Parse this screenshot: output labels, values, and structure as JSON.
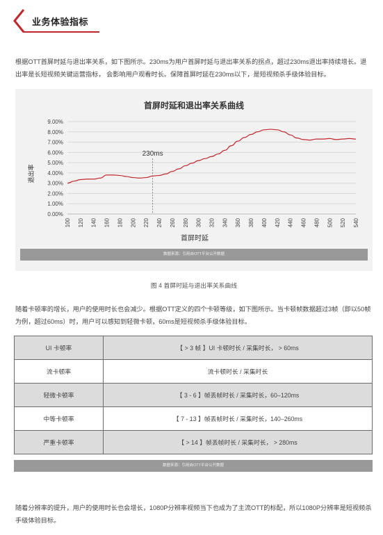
{
  "header": {
    "title": "业务体验指标",
    "accent_color": "#c0272d"
  },
  "intro_paragraph": "根据OTT首屏时延与退出率关系，如下图所示。230ms为用户首屏时延与退出率关系的拐点，超过230ms退出率持续增长。退出率是长短视频关键运营指标， 会影响用户观看时长。保障首屏时延在230ms以下，是短视频杀手级体验目标。",
  "chart_data": {
    "type": "line",
    "title": "首屏时延和退出率关系曲线",
    "xlabel": "首屏时延",
    "ylabel": "退出率",
    "x": [
      100,
      110,
      120,
      130,
      140,
      150,
      160,
      170,
      180,
      190,
      200,
      210,
      220,
      230,
      240,
      250,
      260,
      270,
      280,
      290,
      300,
      310,
      320,
      330,
      340,
      350,
      360,
      370,
      380,
      390,
      400,
      410,
      420,
      430,
      440,
      450,
      460,
      470,
      480,
      490,
      500,
      510,
      520,
      530,
      540
    ],
    "series": [
      {
        "values": [
          3.0,
          3.2,
          3.35,
          3.4,
          3.4,
          3.5,
          3.8,
          3.8,
          3.75,
          3.65,
          3.55,
          3.5,
          3.55,
          3.7,
          3.75,
          3.9,
          4.15,
          4.4,
          4.7,
          4.95,
          5.2,
          5.4,
          5.6,
          5.85,
          6.2,
          6.65,
          7.1,
          7.45,
          7.75,
          8.0,
          8.2,
          8.25,
          8.2,
          8.0,
          7.7,
          7.4,
          7.25,
          7.2,
          7.3,
          7.3,
          7.35,
          7.25,
          7.3,
          7.35,
          7.3
        ]
      }
    ],
    "ylim": [
      0,
      9
    ],
    "yticks": [
      "0.00%",
      "1.00%",
      "2.00%",
      "3.00%",
      "4.00%",
      "5.00%",
      "6.00%",
      "7.00%",
      "8.00%",
      "9.00%"
    ],
    "xticks": [
      "100",
      "120",
      "140",
      "160",
      "180",
      "200",
      "220",
      "240",
      "260",
      "280",
      "300",
      "320",
      "340",
      "360",
      "380",
      "400",
      "420",
      "440",
      "460",
      "480",
      "500",
      "520",
      "540"
    ],
    "annotation": {
      "x": 230,
      "label": "230ms"
    },
    "line_color": "#c0272d",
    "grid": true
  },
  "chart_source": "数据来源：引用自OTT平台公开数据",
  "figure_caption": "图 4 首屏时延与退出率关系曲线",
  "stall_paragraph": "随着卡顿率的增长，用户的使用时长也会减少。根据OTT定义的四个卡顿等级，如下图所示。当卡顿帧数据超过3帧（即以50帧为例，超过60ms）时，用户可以感知到轻微卡顿，60ms是短视频杀手级体验目标。",
  "stall_table": [
    {
      "label": "UI 卡顿率",
      "value": "【 > 3 帧 】UI 卡顿时长 / 采集时长， > 60ms"
    },
    {
      "label": "流卡顿率",
      "value": "流卡顿时长 / 采集时长"
    },
    {
      "label": "轻微卡顿率",
      "value": "【 3 - 6 】帧丢帧时长 / 采集时长，60–120ms"
    },
    {
      "label": "中等卡顿率",
      "value": "【 7 - 13 】帧丢帧时长 / 采集时长，140–260ms"
    },
    {
      "label": "严重卡顿率",
      "value": "【 > 14 】帧丢帧时长 / 采集时长， > 280ms"
    }
  ],
  "table_source": "数据来源：引用自OTT平台公开数据",
  "resolution_paragraph": "随着分辨率的提升，用户的使用时长也会增长，1080P分辨率视频当下也成为了主流OTT的标配，所以1080P分辨率是短视频杀手级体验目标。"
}
